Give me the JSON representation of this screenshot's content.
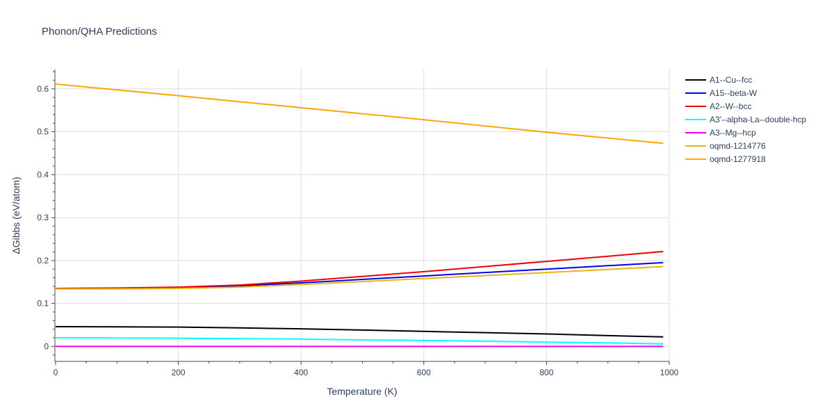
{
  "chart_data": {
    "type": "line",
    "title": "Phonon/QHA Predictions",
    "xlabel": "Temperature (K)",
    "ylabel": "ΔGibbs (eV/atom)",
    "xlim": [
      0,
      1000
    ],
    "ylim": [
      -0.035,
      0.645
    ],
    "xticks": [
      0,
      200,
      400,
      600,
      800,
      1000
    ],
    "yticks": [
      0,
      0.1,
      0.2,
      0.3,
      0.4,
      0.5,
      0.6
    ],
    "xtick_labels": [
      "0",
      "200",
      "400",
      "600",
      "800",
      "1000"
    ],
    "ytick_labels": [
      "0",
      "0.1",
      "0.2",
      "0.3",
      "0.4",
      "0.5",
      "0.6"
    ],
    "grid": true,
    "legend_position": "top-right",
    "series": [
      {
        "name": "A1--Cu--fcc",
        "color": "#000000",
        "x": [
          0,
          100,
          200,
          300,
          400,
          500,
          600,
          700,
          800,
          900,
          990
        ],
        "y": [
          0.046,
          0.0455,
          0.045,
          0.043,
          0.041,
          0.038,
          0.035,
          0.032,
          0.029,
          0.025,
          0.022
        ]
      },
      {
        "name": "A15--beta-W",
        "color": "#0000ee",
        "x": [
          0,
          100,
          200,
          300,
          400,
          500,
          600,
          700,
          800,
          900,
          990
        ],
        "y": [
          0.135,
          0.1355,
          0.137,
          0.141,
          0.148,
          0.156,
          0.164,
          0.172,
          0.18,
          0.188,
          0.195
        ]
      },
      {
        "name": "A2--W--bcc",
        "color": "#ee0000",
        "x": [
          0,
          100,
          200,
          300,
          400,
          500,
          600,
          700,
          800,
          900,
          990
        ],
        "y": [
          0.135,
          0.136,
          0.138,
          0.143,
          0.152,
          0.163,
          0.174,
          0.186,
          0.198,
          0.21,
          0.221
        ]
      },
      {
        "name": "A3'--alpha-La--double-hcp",
        "color": "#00ffff",
        "x": [
          0,
          100,
          200,
          300,
          400,
          500,
          600,
          700,
          800,
          900,
          990
        ],
        "y": [
          0.02,
          0.0195,
          0.019,
          0.018,
          0.017,
          0.015,
          0.014,
          0.012,
          0.01,
          0.008,
          0.006
        ]
      },
      {
        "name": "A3--Mg--hcp",
        "color": "#ee00ee",
        "x": [
          0,
          100,
          200,
          300,
          400,
          500,
          600,
          700,
          800,
          900,
          990
        ],
        "y": [
          0,
          0,
          0,
          0,
          0,
          0,
          0,
          0,
          0,
          0,
          0
        ]
      },
      {
        "name": "oqmd-1214776",
        "color": "#e8b410",
        "x": [
          0,
          100,
          200,
          300,
          400,
          500,
          600,
          700,
          800,
          900,
          990
        ],
        "y": [
          0.134,
          0.134,
          0.135,
          0.138,
          0.144,
          0.151,
          0.158,
          0.165,
          0.172,
          0.179,
          0.186
        ]
      },
      {
        "name": "oqmd-1277918",
        "color": "#ffa500",
        "x": [
          0,
          200,
          400,
          600,
          800,
          990
        ],
        "y": [
          0.611,
          0.584,
          0.556,
          0.528,
          0.499,
          0.473
        ]
      }
    ]
  }
}
